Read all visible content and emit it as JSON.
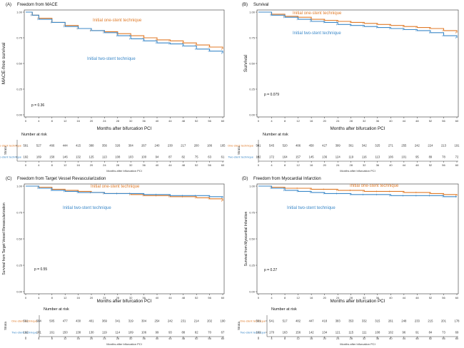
{
  "colors": {
    "one": "#E07B29",
    "two": "#3C89C9"
  },
  "chart_data": [
    {
      "type": "line",
      "panel": "(A)",
      "title": "Freedom from MACE",
      "xlabel": "Months after bifurcation PCI",
      "ylabel": "MACE-free survival",
      "xlim": [
        0,
        60
      ],
      "ylim": [
        0,
        1
      ],
      "x_ticks": [
        0,
        4,
        8,
        12,
        16,
        20,
        24,
        28,
        32,
        36,
        40,
        44,
        48,
        52,
        56,
        60
      ],
      "y_ticks": [
        "0.00",
        "0.25",
        "0.50",
        "0.75",
        "1.00"
      ],
      "p_value": "p = 0.36",
      "series": [
        {
          "name": "Initial one-stent technique",
          "x": [
            0,
            2,
            4,
            8,
            12,
            16,
            20,
            24,
            28,
            32,
            36,
            40,
            44,
            48,
            52,
            56,
            60
          ],
          "y": [
            1.0,
            0.97,
            0.94,
            0.9,
            0.87,
            0.84,
            0.82,
            0.81,
            0.79,
            0.77,
            0.75,
            0.73,
            0.72,
            0.7,
            0.68,
            0.66,
            0.64
          ]
        },
        {
          "name": "Initial two-stent technique",
          "x": [
            0,
            2,
            4,
            8,
            12,
            16,
            20,
            24,
            28,
            32,
            36,
            40,
            44,
            48,
            52,
            56,
            60
          ],
          "y": [
            1.0,
            0.97,
            0.93,
            0.9,
            0.86,
            0.84,
            0.82,
            0.8,
            0.77,
            0.74,
            0.72,
            0.7,
            0.69,
            0.67,
            0.64,
            0.62,
            0.6
          ]
        }
      ],
      "annotations": [
        {
          "text": "Initial one-stent technique",
          "series": 0
        },
        {
          "text": "Initial two-stent technique",
          "series": 1
        }
      ],
      "risk_table": {
        "title": "Number at risk",
        "strata_label": "Strata",
        "rows": [
          {
            "label": "One-stent technique",
            "series": 0,
            "values": [
              "591",
              "527",
              "466",
              "444",
              "415",
              "388",
              "356",
              "326",
              "304",
              "267",
              "240",
              "230",
              "217",
              "200",
              "186",
              "165"
            ]
          },
          {
            "label": "Two-stent technique",
            "series": 1,
            "values": [
              "192",
              "169",
              "158",
              "146",
              "132",
              "125",
              "113",
              "108",
              "103",
              "100",
              "94",
              "87",
              "82",
              "75",
              "63",
              "61"
            ]
          }
        ],
        "x_ticks": [
          0,
          4,
          8,
          12,
          16,
          20,
          24,
          28,
          32,
          36,
          40,
          44,
          48,
          52,
          56,
          60
        ],
        "xlabel": "Months after bifurcation PCI"
      }
    },
    {
      "type": "line",
      "panel": "(B)",
      "title": "Survival",
      "xlabel": "Months after bifurcation PCI",
      "ylabel": "Survival",
      "xlim": [
        0,
        60
      ],
      "ylim": [
        0,
        1
      ],
      "x_ticks": [
        0,
        4,
        8,
        12,
        16,
        20,
        24,
        28,
        32,
        36,
        40,
        44,
        48,
        52,
        56,
        60
      ],
      "y_ticks": [
        "0.00",
        "0.25",
        "0.50",
        "0.75",
        "1.00"
      ],
      "p_value": "p = 0.079",
      "series": [
        {
          "name": "Initial one-stent technique",
          "x": [
            0,
            4,
            8,
            12,
            16,
            20,
            24,
            28,
            32,
            36,
            40,
            44,
            48,
            52,
            56,
            60
          ],
          "y": [
            1.0,
            0.98,
            0.96,
            0.95,
            0.93,
            0.92,
            0.91,
            0.9,
            0.89,
            0.88,
            0.87,
            0.86,
            0.85,
            0.84,
            0.82,
            0.8
          ]
        },
        {
          "name": "Initial two-stent technique",
          "x": [
            0,
            4,
            8,
            12,
            16,
            20,
            24,
            28,
            32,
            36,
            40,
            44,
            48,
            52,
            56,
            60
          ],
          "y": [
            1.0,
            0.97,
            0.95,
            0.93,
            0.91,
            0.9,
            0.88,
            0.87,
            0.86,
            0.85,
            0.84,
            0.83,
            0.82,
            0.8,
            0.77,
            0.75
          ]
        }
      ],
      "annotations": [
        {
          "text": "Initial one-stent technique",
          "series": 0
        },
        {
          "text": "Initial two-stent technique",
          "series": 1
        }
      ],
      "risk_table": {
        "title": "Number at risk",
        "strata_label": "Strata",
        "rows": [
          {
            "label": "One-stent technique",
            "series": 0,
            "values": [
              "591",
              "545",
              "520",
              "486",
              "458",
              "427",
              "399",
              "361",
              "342",
              "325",
              "271",
              "255",
              "242",
              "224",
              "213",
              "191"
            ]
          },
          {
            "label": "Two-stent technique",
            "series": 1,
            "values": [
              "192",
              "172",
              "164",
              "157",
              "145",
              "136",
              "124",
              "119",
              "116",
              "113",
              "106",
              "101",
              "95",
              "89",
              "78",
              "72"
            ]
          }
        ],
        "x_ticks": [
          0,
          4,
          8,
          12,
          16,
          20,
          24,
          28,
          32,
          36,
          40,
          44,
          48,
          52,
          56,
          60
        ],
        "xlabel": "Months after bifurcation PCI"
      }
    },
    {
      "type": "line",
      "panel": "(C)",
      "title": "Freedom from Target Vessel Revascularization",
      "xlabel": "Months after bifurcation PCI",
      "ylabel": "Survival from Target Vessel Revascularization",
      "xlim": [
        0,
        60
      ],
      "ylim": [
        0,
        1
      ],
      "x_ticks": [
        0,
        4,
        8,
        12,
        16,
        20,
        24,
        28,
        32,
        36,
        40,
        44,
        48,
        52,
        56,
        60
      ],
      "y_ticks": [
        "0.00",
        "0.25",
        "0.50",
        "0.75",
        "1.00"
      ],
      "p_value": "p = 0.55",
      "series": [
        {
          "name": "Initial one-stent technique",
          "x": [
            0,
            4,
            8,
            12,
            16,
            20,
            24,
            28,
            32,
            36,
            40,
            44,
            48,
            52,
            56,
            60
          ],
          "y": [
            1.0,
            0.99,
            0.97,
            0.96,
            0.95,
            0.94,
            0.93,
            0.93,
            0.92,
            0.91,
            0.91,
            0.9,
            0.9,
            0.89,
            0.88,
            0.86
          ]
        },
        {
          "name": "Initial two-stent technique",
          "x": [
            0,
            4,
            8,
            12,
            16,
            20,
            24,
            28,
            32,
            36,
            40,
            44,
            48,
            52,
            56,
            60
          ],
          "y": [
            1.0,
            0.98,
            0.96,
            0.95,
            0.94,
            0.94,
            0.93,
            0.93,
            0.93,
            0.92,
            0.92,
            0.91,
            0.91,
            0.91,
            0.9,
            0.89
          ]
        }
      ],
      "annotations": [
        {
          "text": "Initial one-stent technique",
          "series": 0
        },
        {
          "text": "Initial two-stent technique",
          "series": 1
        }
      ],
      "risk_table": {
        "title": "Number at risk",
        "strata_label": "Strata",
        "rows": [
          {
            "label": "One-stent technique",
            "series": 0,
            "values": [
              "591",
              "534",
              "505",
              "477",
              "430",
              "401",
              "369",
              "341",
              "319",
              "304",
              "254",
              "242",
              "231",
              "214",
              "202",
              "190"
            ]
          },
          {
            "label": "Two-stent technique",
            "series": 1,
            "values": [
              "192",
              "171",
              "161",
              "150",
              "138",
              "130",
              "119",
              "114",
              "109",
              "106",
              "99",
              "93",
              "88",
              "82",
              "70",
              "67"
            ]
          }
        ],
        "x_ticks": [
          0,
          4,
          8,
          12,
          16,
          20,
          24,
          28,
          32,
          36,
          40,
          44,
          48,
          52,
          56,
          60
        ],
        "xlabel": "Months after bifurcation PCI"
      }
    },
    {
      "type": "line",
      "panel": "(D)",
      "title": "Freedom from Myocardial Infarction",
      "xlabel": "Months after bifurcation PCI",
      "ylabel": "Survival from Myocardial Infarction",
      "xlim": [
        0,
        60
      ],
      "ylim": [
        0,
        1
      ],
      "x_ticks": [
        0,
        4,
        8,
        12,
        16,
        20,
        24,
        28,
        32,
        36,
        40,
        44,
        48,
        52,
        56,
        60
      ],
      "y_ticks": [
        "0.00",
        "0.25",
        "0.50",
        "0.75",
        "1.00"
      ],
      "p_value": "p = 0.27",
      "series": [
        {
          "name": "Initial one-stent technique",
          "x": [
            0,
            4,
            8,
            12,
            16,
            20,
            24,
            28,
            32,
            36,
            40,
            44,
            48,
            52,
            56,
            60
          ],
          "y": [
            1.0,
            0.99,
            0.98,
            0.98,
            0.97,
            0.97,
            0.96,
            0.96,
            0.95,
            0.95,
            0.95,
            0.94,
            0.94,
            0.93,
            0.92,
            0.91
          ]
        },
        {
          "name": "Initial two-stent technique",
          "x": [
            0,
            4,
            8,
            12,
            16,
            20,
            24,
            28,
            32,
            36,
            40,
            44,
            48,
            52,
            56,
            60
          ],
          "y": [
            1.0,
            0.98,
            0.96,
            0.95,
            0.94,
            0.93,
            0.93,
            0.92,
            0.92,
            0.92,
            0.91,
            0.91,
            0.91,
            0.91,
            0.9,
            0.9
          ]
        }
      ],
      "annotations": [
        {
          "text": "Initial one-stent technique",
          "series": 0
        },
        {
          "text": "Initial two-stent technique",
          "series": 1
        }
      ],
      "risk_table": {
        "title": "Number at risk",
        "strata_label": "Strata",
        "rows": [
          {
            "label": "One-stent technique",
            "series": 0,
            "values": [
              "591",
              "541",
              "517",
              "482",
              "447",
              "418",
              "383",
              "353",
              "332",
              "315",
              "261",
              "248",
              "233",
              "215",
              "201",
              "178"
            ]
          },
          {
            "label": "Two-stent technique",
            "series": 1,
            "values": [
              "192",
              "170",
              "163",
              "156",
              "142",
              "134",
              "121",
              "115",
              "111",
              "108",
              "102",
              "96",
              "91",
              "84",
              "73",
              "69"
            ]
          }
        ],
        "x_ticks": [
          0,
          4,
          8,
          12,
          16,
          20,
          24,
          28,
          32,
          36,
          40,
          44,
          48,
          52,
          56,
          60
        ],
        "xlabel": "Months after bifurcation PCI"
      }
    }
  ]
}
